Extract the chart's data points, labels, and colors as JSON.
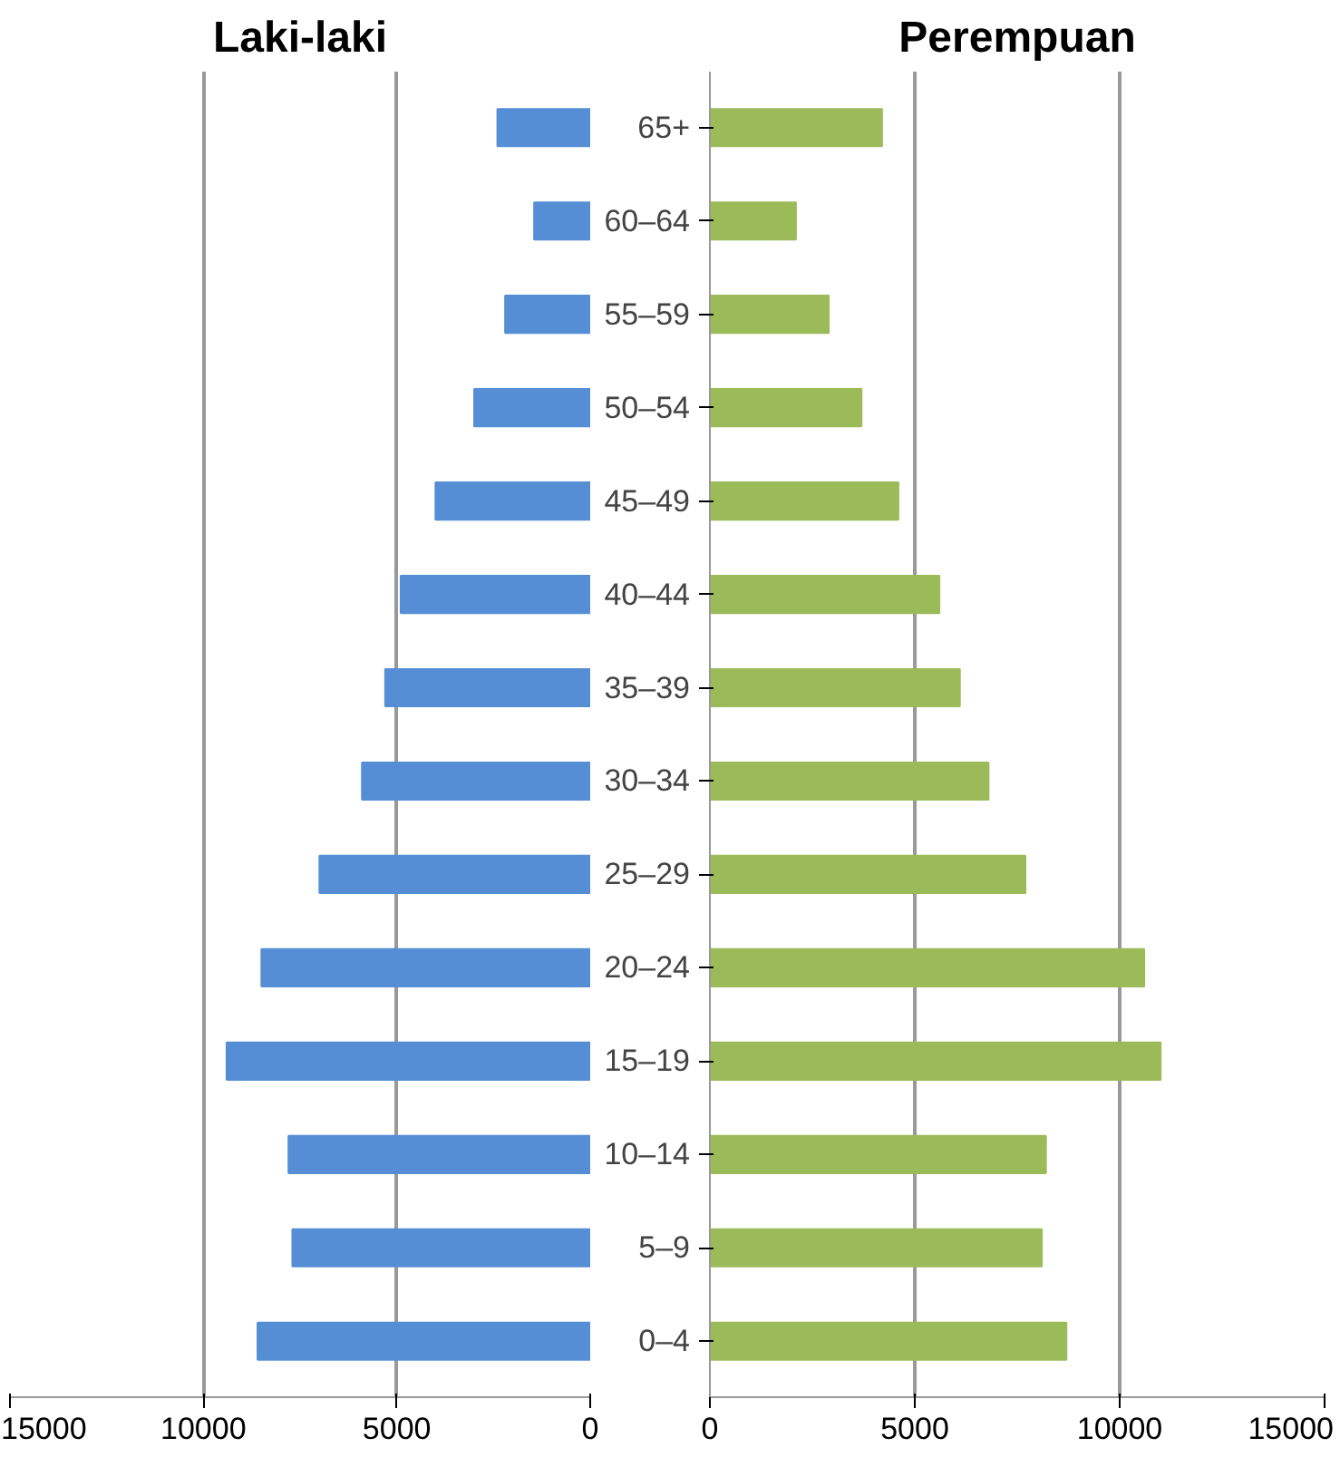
{
  "chart_data": [
    {
      "type": "bar",
      "orientation": "horizontal",
      "title": "Laki-laki",
      "values": [
        2400,
        1450,
        2200,
        3000,
        4000,
        4900,
        5300,
        5900,
        7000,
        8500,
        9400,
        7800,
        7700,
        8600
      ],
      "color": "#558ed5",
      "xlim": [
        15000,
        0
      ],
      "xticks": [
        15000,
        10000,
        5000,
        0
      ],
      "grid": "x",
      "tick_labels": "x"
    },
    {
      "type": "bar",
      "orientation": "horizontal",
      "title": "Perempuan",
      "categories": [
        "65+",
        "60–64",
        "55–59",
        "50–54",
        "45–49",
        "40–44",
        "35–39",
        "30–34",
        "25–29",
        "20–24",
        "15–19",
        "10–14",
        "5–9",
        "0–4"
      ],
      "values": [
        4200,
        2100,
        2900,
        3700,
        4600,
        5600,
        6100,
        6800,
        7700,
        10600,
        11000,
        8200,
        8100,
        8700
      ],
      "color": "#9bbb59",
      "xlim": [
        0,
        15000
      ],
      "xticks": [
        0,
        5000,
        10000,
        15000
      ],
      "grid": "x"
    }
  ]
}
